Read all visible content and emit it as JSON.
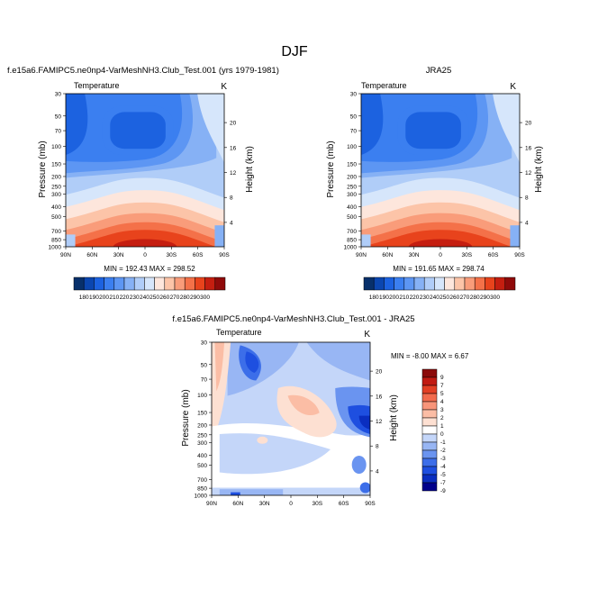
{
  "figure": {
    "title": "DJF"
  },
  "colors": {
    "scale_abs": [
      "#08306b",
      "#0b46b0",
      "#1c62e0",
      "#3b7ff0",
      "#5d96f3",
      "#86b1f5",
      "#b0cdf8",
      "#d6e6fb",
      "#fde6dc",
      "#fcc4a8",
      "#f99c7a",
      "#f47149",
      "#e8431c",
      "#c51e10",
      "#8f0a0a"
    ],
    "scale_diff": [
      "#00008b",
      "#0a2ec0",
      "#1e4fe0",
      "#3c6ee9",
      "#6a94f0",
      "#98b6f4",
      "#c4d6f9",
      "#ffffff",
      "#fde0d2",
      "#fbbda5",
      "#f8957a",
      "#f26b4d",
      "#e23f24",
      "#c11a12",
      "#8b0a0a"
    ]
  },
  "chart_data": [
    {
      "type": "heatmap",
      "title_left": "f.e15a6.FAMIPC5.ne0np4-VarMeshNH3.Club_Test.001 (yrs 1979-1981)",
      "subtitle_left": "Temperature",
      "subtitle_right": "K",
      "xlabel": "",
      "ylabel": "Pressure (mb)",
      "ylabel_right": "Height (km)",
      "x_ticks": [
        "90N",
        "60N",
        "30N",
        "0",
        "30S",
        "60S",
        "90S"
      ],
      "y_ticks": [
        "30",
        "50",
        "70",
        "100",
        "150",
        "200",
        "250",
        "300",
        "400",
        "500",
        "700",
        "850",
        "1000"
      ],
      "y_ticks_right": [
        "20",
        "16",
        "12",
        "8",
        "4"
      ],
      "stats": "MIN = 192.43   MAX = 298.52",
      "colorbar_labels": [
        "180",
        "190",
        "200",
        "210",
        "220",
        "230",
        "240",
        "250",
        "260",
        "270",
        "280",
        "290",
        "300"
      ],
      "min": 192.43,
      "max": 298.52
    },
    {
      "type": "heatmap",
      "title_center": "JRA25",
      "subtitle_left": "Temperature",
      "subtitle_right": "K",
      "xlabel": "",
      "ylabel": "Pressure (mb)",
      "ylabel_right": "Height (km)",
      "x_ticks": [
        "90N",
        "60N",
        "30N",
        "0",
        "30S",
        "60S",
        "90S"
      ],
      "y_ticks": [
        "30",
        "50",
        "70",
        "100",
        "150",
        "200",
        "250",
        "300",
        "400",
        "500",
        "700",
        "850",
        "1000"
      ],
      "y_ticks_right": [
        "20",
        "16",
        "12",
        "8",
        "4"
      ],
      "stats": "MIN = 191.65   MAX = 298.74",
      "colorbar_labels": [
        "180",
        "190",
        "200",
        "210",
        "220",
        "230",
        "240",
        "250",
        "260",
        "270",
        "280",
        "290",
        "300"
      ],
      "min": 191.65,
      "max": 298.74
    },
    {
      "type": "heatmap",
      "title_center": "f.e15a6.FAMIPC5.ne0np4-VarMeshNH3.Club_Test.001 - JRA25",
      "subtitle_left": "Temperature",
      "subtitle_right": "K",
      "xlabel": "",
      "ylabel": "Pressure (mb)",
      "ylabel_right": "Height (km)",
      "x_ticks": [
        "90N",
        "60N",
        "30N",
        "0",
        "30S",
        "60S",
        "90S"
      ],
      "y_ticks": [
        "30",
        "50",
        "70",
        "100",
        "150",
        "200",
        "250",
        "300",
        "400",
        "500",
        "700",
        "850",
        "1000"
      ],
      "y_ticks_right": [
        "20",
        "16",
        "12",
        "8",
        "4"
      ],
      "stats": "MIN = -8.00   MAX =   6.67",
      "colorbar_labels": [
        "9",
        "7",
        "5",
        "4",
        "3",
        "2",
        "1",
        "0",
        "-1",
        "-2",
        "-3",
        "-4",
        "-5",
        "-7",
        "-9"
      ],
      "min": -8.0,
      "max": 6.67
    }
  ]
}
